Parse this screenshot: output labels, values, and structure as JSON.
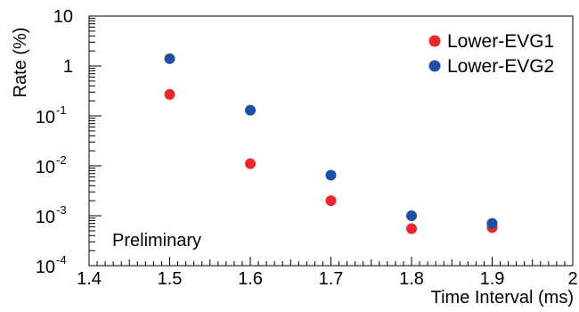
{
  "chart_data": {
    "type": "scatter",
    "xlabel": "Time Interval (ms)",
    "ylabel": "Rate (%)",
    "xlim": [
      1.4,
      2.0
    ],
    "ylim": [
      0.0001,
      10
    ],
    "yscale": "log",
    "x_ticks": [
      "1.4",
      "1.5",
      "1.6",
      "1.7",
      "1.8",
      "1.9",
      "2"
    ],
    "y_ticks": [
      {
        "value": 10,
        "base": "10",
        "exp": ""
      },
      {
        "value": 1,
        "base": "1",
        "exp": ""
      },
      {
        "value": 0.1,
        "base": "10",
        "exp": "-1"
      },
      {
        "value": 0.01,
        "base": "10",
        "exp": "-2"
      },
      {
        "value": 0.001,
        "base": "10",
        "exp": "-3"
      },
      {
        "value": 0.0001,
        "base": "10",
        "exp": "-4"
      }
    ],
    "grid": false,
    "legend_position": "top-right",
    "annotation": "Preliminary",
    "series": [
      {
        "name": "Lower-EVG1",
        "color": "#e8282b",
        "x": [
          1.5,
          1.6,
          1.7,
          1.8,
          1.9
        ],
        "y": [
          0.27,
          0.011,
          0.002,
          0.00055,
          0.00058
        ]
      },
      {
        "name": "Lower-EVG2",
        "color": "#1f4ea3",
        "x": [
          1.5,
          1.6,
          1.7,
          1.8,
          1.9
        ],
        "y": [
          1.4,
          0.13,
          0.0065,
          0.001,
          0.0007
        ]
      }
    ]
  }
}
